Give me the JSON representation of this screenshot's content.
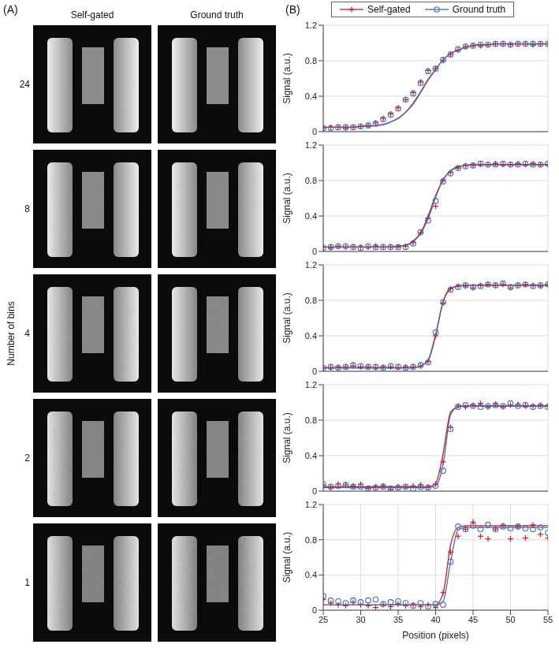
{
  "panel_a": {
    "label": "(A)",
    "columns": [
      "Self-gated",
      "Ground truth"
    ],
    "row_title": "Number of bins",
    "rows": [
      "24",
      "8",
      "4",
      "2",
      "1"
    ]
  },
  "panel_b": {
    "label": "(B)"
  },
  "chart_data": [
    {
      "type": "line",
      "legend": "top",
      "tick_labels": "y",
      "grid": true,
      "ylabel": "Signal (a.u.)",
      "xlim": [
        25,
        55
      ],
      "xticks": [
        25,
        30,
        35,
        40,
        45,
        50,
        55
      ],
      "ylim": [
        0,
        1.2
      ],
      "yticks": [
        0,
        0.4,
        0.8,
        1.2
      ],
      "x": [
        25,
        26,
        27,
        28,
        29,
        30,
        31,
        32,
        33,
        34,
        35,
        36,
        37,
        38,
        39,
        40,
        41,
        42,
        43,
        44,
        45,
        46,
        47,
        48,
        49,
        50,
        51,
        52,
        53,
        54,
        55
      ],
      "series": [
        {
          "name": "Self-gated",
          "color": "#d7191c",
          "marker": "plus",
          "values": [
            0.04,
            0.05,
            0.05,
            0.04,
            0.05,
            0.06,
            0.07,
            0.1,
            0.15,
            0.2,
            0.27,
            0.36,
            0.44,
            0.56,
            0.69,
            0.71,
            0.8,
            0.87,
            0.92,
            0.96,
            0.97,
            0.97,
            0.98,
            0.99,
            0.99,
            0.98,
            0.99,
            0.99,
            0.98,
            0.99,
            0.99
          ],
          "fit": [
            0.05,
            0.05,
            0.05,
            0.05,
            0.05,
            0.06,
            0.06,
            0.07,
            0.08,
            0.11,
            0.15,
            0.22,
            0.32,
            0.45,
            0.59,
            0.7,
            0.81,
            0.88,
            0.92,
            0.95,
            0.97,
            0.98,
            0.98,
            0.99,
            0.99,
            0.99,
            0.99,
            0.99,
            0.99,
            0.99,
            0.99
          ]
        },
        {
          "name": "Ground truth",
          "color": "#3f6fb8",
          "marker": "circle",
          "values": [
            0.04,
            0.04,
            0.05,
            0.05,
            0.05,
            0.06,
            0.07,
            0.09,
            0.14,
            0.19,
            0.26,
            0.36,
            0.43,
            0.55,
            0.68,
            0.71,
            0.81,
            0.87,
            0.93,
            0.96,
            0.97,
            0.98,
            0.98,
            0.99,
            0.99,
            0.98,
            0.99,
            0.99,
            0.99,
            0.99,
            0.99
          ],
          "fit": [
            0.05,
            0.05,
            0.05,
            0.05,
            0.05,
            0.06,
            0.06,
            0.07,
            0.08,
            0.11,
            0.15,
            0.22,
            0.31,
            0.44,
            0.58,
            0.7,
            0.81,
            0.88,
            0.92,
            0.95,
            0.97,
            0.98,
            0.98,
            0.99,
            0.99,
            0.99,
            0.99,
            0.99,
            0.99,
            0.99,
            0.99
          ]
        }
      ]
    },
    {
      "type": "line",
      "tick_labels": "y",
      "grid": true,
      "ylabel": "Signal (a.u.)",
      "xlim": [
        25,
        55
      ],
      "xticks": [
        25,
        30,
        35,
        40,
        45,
        50,
        55
      ],
      "ylim": [
        0,
        1.2
      ],
      "yticks": [
        0,
        0.4,
        0.8,
        1.2
      ],
      "x": [
        25,
        26,
        27,
        28,
        29,
        30,
        31,
        32,
        33,
        34,
        35,
        36,
        37,
        38,
        39,
        40,
        41,
        42,
        43,
        44,
        45,
        46,
        47,
        48,
        49,
        50,
        51,
        52,
        53,
        54,
        55
      ],
      "series": [
        {
          "name": "Self-gated",
          "color": "#d7191c",
          "marker": "plus",
          "values": [
            0.05,
            0.04,
            0.06,
            0.05,
            0.05,
            0.05,
            0.05,
            0.06,
            0.05,
            0.05,
            0.05,
            0.06,
            0.1,
            0.21,
            0.38,
            0.51,
            0.8,
            0.89,
            0.94,
            0.97,
            0.97,
            0.98,
            0.98,
            0.99,
            0.98,
            0.98,
            0.99,
            0.98,
            0.99,
            0.98,
            0.98
          ],
          "fit": [
            0.05,
            0.05,
            0.05,
            0.05,
            0.05,
            0.05,
            0.05,
            0.05,
            0.05,
            0.05,
            0.06,
            0.07,
            0.12,
            0.21,
            0.4,
            0.63,
            0.81,
            0.91,
            0.95,
            0.97,
            0.98,
            0.98,
            0.98,
            0.98,
            0.98,
            0.98,
            0.98,
            0.98,
            0.98,
            0.98,
            0.98
          ]
        },
        {
          "name": "Ground truth",
          "color": "#3f6fb8",
          "marker": "circle",
          "values": [
            0.04,
            0.05,
            0.06,
            0.06,
            0.05,
            0.04,
            0.06,
            0.05,
            0.05,
            0.05,
            0.05,
            0.05,
            0.09,
            0.22,
            0.35,
            0.57,
            0.79,
            0.88,
            0.94,
            0.96,
            0.97,
            0.99,
            0.98,
            0.98,
            0.99,
            0.98,
            0.98,
            0.99,
            0.98,
            0.98,
            0.99
          ],
          "fit": [
            0.05,
            0.05,
            0.05,
            0.05,
            0.05,
            0.05,
            0.05,
            0.05,
            0.05,
            0.05,
            0.06,
            0.07,
            0.11,
            0.2,
            0.37,
            0.61,
            0.81,
            0.91,
            0.96,
            0.97,
            0.98,
            0.98,
            0.98,
            0.98,
            0.98,
            0.98,
            0.98,
            0.98,
            0.98,
            0.98,
            0.98
          ]
        }
      ]
    },
    {
      "type": "line",
      "tick_labels": "y",
      "grid": true,
      "ylabel": "Signal (a.u.)",
      "xlim": [
        25,
        55
      ],
      "xticks": [
        25,
        30,
        35,
        40,
        45,
        50,
        55
      ],
      "ylim": [
        0,
        1.2
      ],
      "yticks": [
        0,
        0.4,
        0.8,
        1.2
      ],
      "x": [
        25,
        26,
        27,
        28,
        29,
        30,
        31,
        32,
        33,
        34,
        35,
        36,
        37,
        38,
        39,
        40,
        41,
        42,
        43,
        44,
        45,
        46,
        47,
        48,
        49,
        50,
        51,
        52,
        53,
        54,
        55
      ],
      "series": [
        {
          "name": "Self-gated",
          "color": "#d7191c",
          "marker": "plus",
          "values": [
            0.04,
            0.04,
            0.05,
            0.05,
            0.06,
            0.05,
            0.05,
            0.04,
            0.05,
            0.05,
            0.04,
            0.05,
            0.05,
            0.06,
            0.11,
            0.4,
            0.77,
            0.93,
            0.96,
            0.96,
            0.94,
            0.97,
            0.98,
            0.97,
            0.98,
            0.94,
            0.97,
            0.98,
            0.97,
            0.96,
            0.98
          ],
          "fit": [
            0.04,
            0.04,
            0.04,
            0.04,
            0.04,
            0.04,
            0.04,
            0.04,
            0.04,
            0.04,
            0.04,
            0.04,
            0.04,
            0.06,
            0.12,
            0.4,
            0.78,
            0.93,
            0.96,
            0.97,
            0.97,
            0.97,
            0.97,
            0.97,
            0.97,
            0.97,
            0.97,
            0.97,
            0.97,
            0.97,
            0.97
          ]
        },
        {
          "name": "Ground truth",
          "color": "#3f6fb8",
          "marker": "circle",
          "values": [
            0.04,
            0.05,
            0.04,
            0.05,
            0.07,
            0.06,
            0.05,
            0.05,
            0.04,
            0.06,
            0.05,
            0.04,
            0.05,
            0.07,
            0.1,
            0.44,
            0.78,
            0.92,
            0.95,
            0.97,
            0.95,
            0.96,
            0.98,
            0.97,
            0.99,
            0.95,
            0.97,
            0.98,
            0.96,
            0.97,
            0.98
          ],
          "fit": [
            0.04,
            0.04,
            0.04,
            0.04,
            0.04,
            0.04,
            0.04,
            0.04,
            0.04,
            0.04,
            0.04,
            0.04,
            0.04,
            0.06,
            0.13,
            0.42,
            0.79,
            0.94,
            0.96,
            0.97,
            0.97,
            0.97,
            0.97,
            0.97,
            0.97,
            0.97,
            0.97,
            0.97,
            0.97,
            0.97,
            0.97
          ]
        }
      ]
    },
    {
      "type": "line",
      "tick_labels": "y",
      "grid": true,
      "ylabel": "Signal (a.u.)",
      "xlim": [
        25,
        55
      ],
      "xticks": [
        25,
        30,
        35,
        40,
        45,
        50,
        55
      ],
      "ylim": [
        0,
        1.2
      ],
      "yticks": [
        0,
        0.4,
        0.8,
        1.2
      ],
      "x": [
        25,
        26,
        27,
        28,
        29,
        30,
        31,
        32,
        33,
        34,
        35,
        36,
        37,
        38,
        39,
        40,
        41,
        42,
        43,
        44,
        45,
        46,
        47,
        48,
        49,
        50,
        51,
        52,
        53,
        54,
        55
      ],
      "series": [
        {
          "name": "Self-gated",
          "color": "#d7191c",
          "marker": "plus",
          "values": [
            0.07,
            0.04,
            0.08,
            0.07,
            0.06,
            0.08,
            0.03,
            0.05,
            0.06,
            0.02,
            0.05,
            0.05,
            0.06,
            0.07,
            0.05,
            0.08,
            0.33,
            0.72,
            0.96,
            0.95,
            0.97,
            0.99,
            0.95,
            0.98,
            0.95,
            0.97,
            0.98,
            0.96,
            0.96,
            0.97,
            0.96
          ],
          "fit": [
            0.05,
            0.05,
            0.05,
            0.05,
            0.05,
            0.05,
            0.05,
            0.05,
            0.05,
            0.05,
            0.05,
            0.05,
            0.05,
            0.05,
            0.05,
            0.09,
            0.42,
            0.89,
            0.95,
            0.96,
            0.96,
            0.96,
            0.96,
            0.96,
            0.96,
            0.96,
            0.96,
            0.96,
            0.96,
            0.96,
            0.96
          ]
        },
        {
          "name": "Ground truth",
          "color": "#3f6fb8",
          "marker": "circle",
          "values": [
            0.08,
            0.05,
            0.06,
            0.07,
            0.05,
            0.05,
            0.03,
            0.04,
            0.05,
            0.03,
            0.04,
            0.05,
            0.03,
            0.05,
            0.04,
            0.06,
            0.23,
            0.7,
            0.95,
            0.97,
            0.96,
            0.95,
            0.96,
            0.97,
            0.96,
            0.99,
            0.96,
            0.97,
            0.95,
            0.96,
            0.95
          ],
          "fit": [
            0.04,
            0.04,
            0.04,
            0.04,
            0.04,
            0.04,
            0.04,
            0.04,
            0.04,
            0.04,
            0.04,
            0.04,
            0.04,
            0.04,
            0.04,
            0.06,
            0.3,
            0.86,
            0.95,
            0.96,
            0.96,
            0.96,
            0.96,
            0.96,
            0.96,
            0.96,
            0.96,
            0.96,
            0.96,
            0.96,
            0.96
          ]
        }
      ]
    },
    {
      "type": "line",
      "grid": true,
      "ylabel": "Signal (a.u.)",
      "xlabel": "Position (pixels)",
      "xlim": [
        25,
        55
      ],
      "xticks": [
        25,
        30,
        35,
        40,
        45,
        50,
        55
      ],
      "ylim": [
        0,
        1.2
      ],
      "yticks": [
        0,
        0.4,
        0.8,
        1.2
      ],
      "x": [
        25,
        26,
        27,
        28,
        29,
        30,
        31,
        32,
        33,
        34,
        35,
        36,
        37,
        38,
        39,
        40,
        41,
        42,
        43,
        44,
        45,
        46,
        47,
        48,
        49,
        50,
        51,
        52,
        53,
        54,
        55
      ],
      "series": [
        {
          "name": "Self-gated",
          "color": "#d7191c",
          "marker": "plus",
          "values": [
            0.12,
            0.08,
            0.06,
            0.05,
            0.09,
            0.06,
            0.05,
            0.03,
            0.06,
            0.04,
            0.07,
            0.05,
            0.06,
            0.04,
            0.06,
            0.03,
            0.2,
            0.66,
            0.84,
            0.92,
            1.0,
            0.84,
            0.81,
            0.92,
            0.96,
            0.81,
            0.95,
            0.82,
            0.97,
            0.86,
            0.82
          ],
          "fit": [
            0.06,
            0.06,
            0.06,
            0.06,
            0.06,
            0.06,
            0.06,
            0.06,
            0.06,
            0.06,
            0.06,
            0.06,
            0.06,
            0.06,
            0.06,
            0.06,
            0.19,
            0.74,
            0.94,
            0.96,
            0.96,
            0.96,
            0.96,
            0.96,
            0.96,
            0.96,
            0.96,
            0.96,
            0.96,
            0.96,
            0.96
          ]
        },
        {
          "name": "Ground truth",
          "color": "#3f6fb8",
          "marker": "circle",
          "values": [
            0.16,
            0.11,
            0.1,
            0.08,
            0.11,
            0.09,
            0.11,
            0.12,
            0.07,
            0.09,
            0.1,
            0.08,
            0.05,
            0.08,
            0.04,
            0.07,
            0.06,
            0.55,
            0.95,
            0.92,
            0.96,
            0.92,
            0.97,
            0.92,
            0.95,
            0.93,
            0.95,
            0.93,
            0.92,
            0.94,
            0.88
          ],
          "fit": [
            0.06,
            0.06,
            0.06,
            0.06,
            0.06,
            0.06,
            0.06,
            0.06,
            0.06,
            0.06,
            0.06,
            0.06,
            0.06,
            0.06,
            0.06,
            0.06,
            0.1,
            0.55,
            0.91,
            0.94,
            0.94,
            0.94,
            0.94,
            0.94,
            0.94,
            0.94,
            0.94,
            0.94,
            0.94,
            0.94,
            0.94
          ]
        }
      ]
    }
  ]
}
